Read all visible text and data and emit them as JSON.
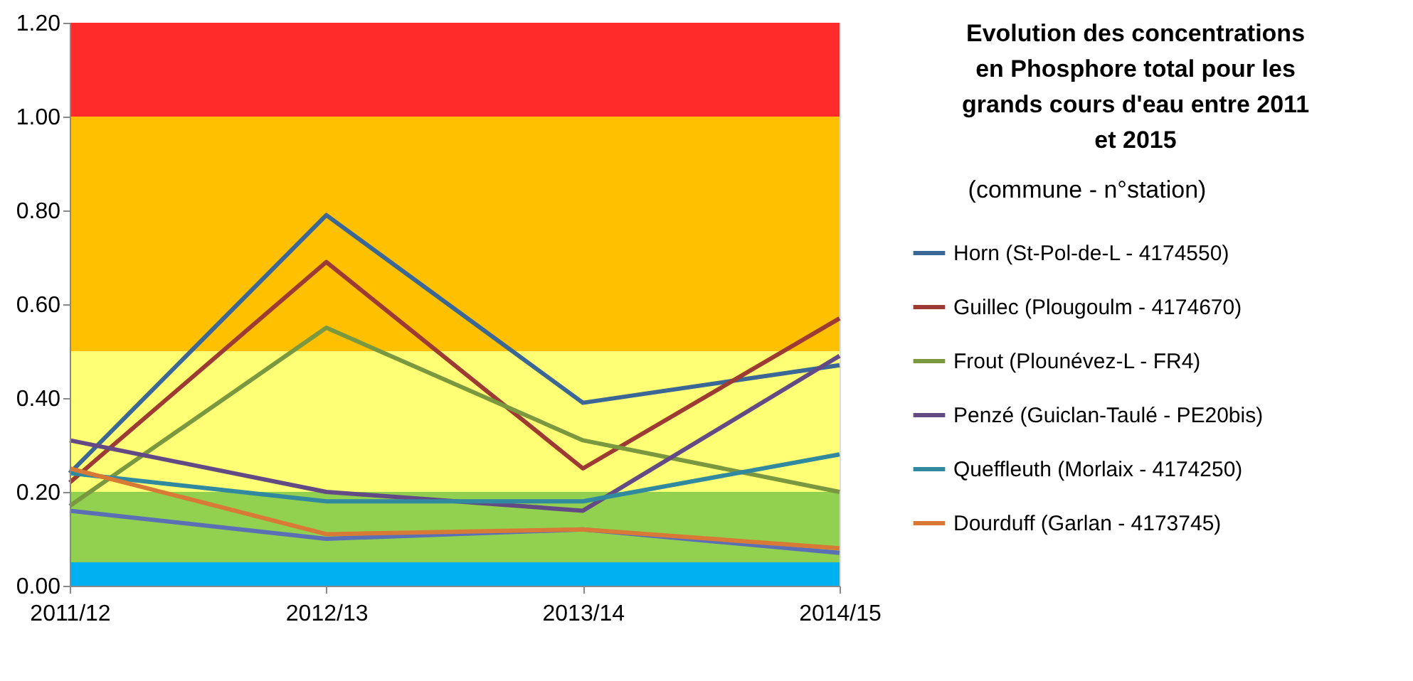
{
  "chart_data": {
    "type": "line",
    "title": [
      "Evolution des concentrations",
      "en Phosphore total pour les",
      "grands cours d'eau entre 2011",
      "et 2015"
    ],
    "legend_title": "(commune - n°station)",
    "categories": [
      "2011/12",
      "2012/13",
      "2013/14",
      "2014/15"
    ],
    "series": [
      {
        "name": "Horn (St-Pol-de-L - 4174550)",
        "color": "#3a6796",
        "values": [
          0.24,
          0.79,
          0.39,
          0.47
        ]
      },
      {
        "name": "Guillec (Plougoulm - 4174670)",
        "color": "#9c3a33",
        "values": [
          0.22,
          0.69,
          0.25,
          0.57
        ]
      },
      {
        "name": "Frout (Plounévez-L - FR4)",
        "color": "#79983f",
        "values": [
          0.17,
          0.55,
          0.31,
          0.2
        ]
      },
      {
        "name": "Penzé (Guiclan-Taulé - PE20bis)",
        "color": "#644a85",
        "values": [
          0.31,
          0.2,
          0.16,
          0.49
        ]
      },
      {
        "name": "Queffleuth (Morlaix - 4174250)",
        "color": "#31899f",
        "values": [
          0.24,
          0.18,
          0.18,
          0.28
        ]
      },
      {
        "name": "Dourduff (Garlan - 4173745)",
        "color": "#d87a36",
        "values": [
          0.25,
          0.11,
          0.12,
          0.08
        ]
      },
      {
        "color": "#5b6fb5",
        "values": [
          0.16,
          0.1,
          0.12,
          0.07
        ]
      }
    ],
    "bands": [
      {
        "axis": "y",
        "from": 0.0,
        "to": 0.05,
        "color": "#00b0f0"
      },
      {
        "axis": "y",
        "from": 0.05,
        "to": 0.2,
        "color": "#92d050"
      },
      {
        "axis": "y",
        "from": 0.2,
        "to": 0.5,
        "color": "#ffff75"
      },
      {
        "axis": "y",
        "from": 0.5,
        "to": 1.0,
        "color": "#ffc000"
      },
      {
        "axis": "y",
        "from": 1.0,
        "to": 1.2,
        "color": "#ff2a2a"
      }
    ],
    "ylim": [
      0,
      1.2
    ],
    "yticks": [
      {
        "value": 0,
        "label": "0.00"
      },
      {
        "value": 0.2,
        "label": "0.20"
      },
      {
        "value": 0.4,
        "label": "0.40"
      },
      {
        "value": 0.6,
        "label": "0.60"
      },
      {
        "value": 0.8,
        "label": "0.80"
      },
      {
        "value": 1.0,
        "label": "1.00"
      },
      {
        "value": 1.2,
        "label": "1.20"
      }
    ],
    "grid": false,
    "legend": "right",
    "line_style": "solid",
    "marker": "none"
  }
}
